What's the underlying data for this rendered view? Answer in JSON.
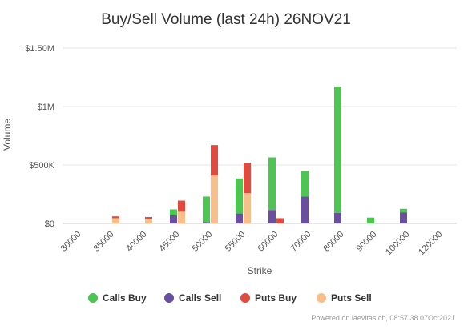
{
  "chart_data": {
    "type": "bar",
    "stacked": true,
    "grouped": true,
    "title": "Buy/Sell Volume (last 24h) 26NOV21",
    "xlabel": "Strike",
    "ylabel": "Volume",
    "ylim": [
      0,
      1500000
    ],
    "y_ticks": [
      {
        "value": 0,
        "label": "$0"
      },
      {
        "value": 500000,
        "label": "$500K"
      },
      {
        "value": 1000000,
        "label": "$1M"
      },
      {
        "value": 1500000,
        "label": "$1.50M"
      }
    ],
    "categories": [
      "30000",
      "35000",
      "40000",
      "45000",
      "50000",
      "55000",
      "60000",
      "70000",
      "80000",
      "90000",
      "100000",
      "120000"
    ],
    "grid": "horizontal",
    "legend_position": "bottom",
    "series": [
      {
        "name": "Calls Buy",
        "color": "#4cc552",
        "stack": "calls",
        "values": [
          0,
          0,
          0,
          50000,
          220000,
          300000,
          450000,
          220000,
          1080000,
          50000,
          30000,
          0
        ]
      },
      {
        "name": "Calls Sell",
        "color": "#6a4fa0",
        "stack": "calls",
        "values": [
          0,
          0,
          0,
          70000,
          10000,
          85000,
          115000,
          230000,
          90000,
          0,
          95000,
          0
        ]
      },
      {
        "name": "Puts Buy",
        "color": "#e04a3f",
        "stack": "puts",
        "values": [
          0,
          15000,
          15000,
          95000,
          260000,
          260000,
          45000,
          0,
          0,
          0,
          0,
          0
        ]
      },
      {
        "name": "Puts Sell",
        "color": "#f7c08a",
        "stack": "puts",
        "values": [
          0,
          45000,
          40000,
          100000,
          410000,
          260000,
          0,
          0,
          0,
          0,
          0,
          0
        ]
      }
    ]
  },
  "credits": "Powered on laevitas.ch, 08:57:38 07Oct2021"
}
